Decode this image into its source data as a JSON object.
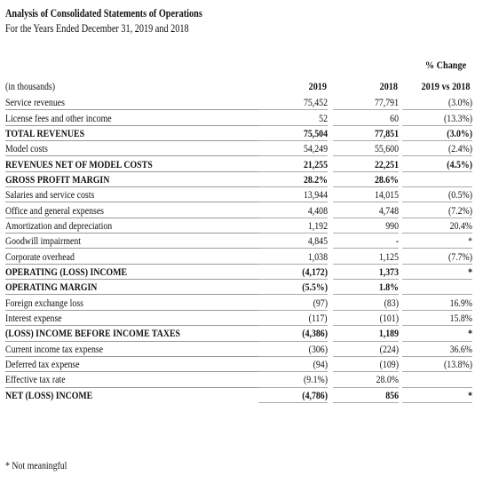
{
  "header": {
    "title": "Analysis of Consolidated Statements of Operations",
    "subtitle": "For the Years Ended December 31, 2019 and 2018"
  },
  "columns": {
    "unit_label": "(in thousands)",
    "year_2019": "2019",
    "year_2018": "2018",
    "change_line1": "% Change",
    "change_line2": "2019 vs 2018"
  },
  "rows": [
    {
      "label": "Service revenues",
      "v2019": "75,452",
      "v2018": "77,791",
      "change": "(3.0%)",
      "style": "normal"
    },
    {
      "label": "License fees and other income",
      "v2019": "52",
      "v2018": "60",
      "change": "(13.3%)",
      "style": "normal"
    },
    {
      "label": "TOTAL REVENUES",
      "v2019": "75,504",
      "v2018": "77,851",
      "change": "(3.0%)",
      "style": "bold-topline"
    },
    {
      "label": "Model costs",
      "v2019": "54,249",
      "v2018": "55,600",
      "change": "(2.4%)",
      "style": "normal"
    },
    {
      "label": "REVENUES NET OF MODEL COSTS",
      "v2019": "21,255",
      "v2018": "22,251",
      "change": "(4.5%)",
      "style": "bold-topline"
    },
    {
      "label": "GROSS PROFIT MARGIN",
      "v2019": "28.2%",
      "v2018": "28.6%",
      "change": "",
      "style": "bold"
    },
    {
      "label": "Salaries and service costs",
      "v2019": "13,944",
      "v2018": "14,015",
      "change": "(0.5%)",
      "style": "normal"
    },
    {
      "label": "Office and general expenses",
      "v2019": "4,408",
      "v2018": "4,748",
      "change": "(7.2%)",
      "style": "normal"
    },
    {
      "label": "Amortization and depreciation",
      "v2019": "1,192",
      "v2018": "990",
      "change": "20.4%",
      "style": "normal"
    },
    {
      "label": "Goodwill impairment",
      "v2019": "4,845",
      "v2018": "-",
      "change": "*",
      "style": "normal"
    },
    {
      "label": "Corporate overhead",
      "v2019": "1,038",
      "v2018": "1,125",
      "change": "(7.7%)",
      "style": "normal"
    },
    {
      "label": "OPERATING (LOSS) INCOME",
      "v2019": "(4,172)",
      "v2018": "1,373",
      "change": "*",
      "style": "bold-topline"
    },
    {
      "label": "OPERATING MARGIN",
      "v2019": "(5.5%)",
      "v2018": "1.8%",
      "change": "",
      "style": "bold"
    },
    {
      "label": "Foreign exchange loss",
      "v2019": "(97)",
      "v2018": "(83)",
      "change": "16.9%",
      "style": "normal"
    },
    {
      "label": "Interest expense",
      "v2019": "(117)",
      "v2018": "(101)",
      "change": "15.8%",
      "style": "normal"
    },
    {
      "label": "(LOSS) INCOME BEFORE INCOME TAXES",
      "v2019": "(4,386)",
      "v2018": "1,189",
      "change": "*",
      "style": "bold-topline"
    },
    {
      "label": "Current income tax expense",
      "v2019": "(306)",
      "v2018": "(224)",
      "change": "36.6%",
      "style": "normal"
    },
    {
      "label": "Deferred tax expense",
      "v2019": "(94)",
      "v2018": "(109)",
      "change": "(13.8%)",
      "style": "normal"
    },
    {
      "label": "Effective tax rate",
      "v2019": "(9.1%)",
      "v2018": "28.0%",
      "change": "",
      "style": "normal"
    },
    {
      "label": "NET (LOSS) INCOME",
      "v2019": "(4,786)",
      "v2018": "856",
      "change": "*",
      "style": "bold-topline"
    }
  ],
  "footnote": "* Not meaningful"
}
